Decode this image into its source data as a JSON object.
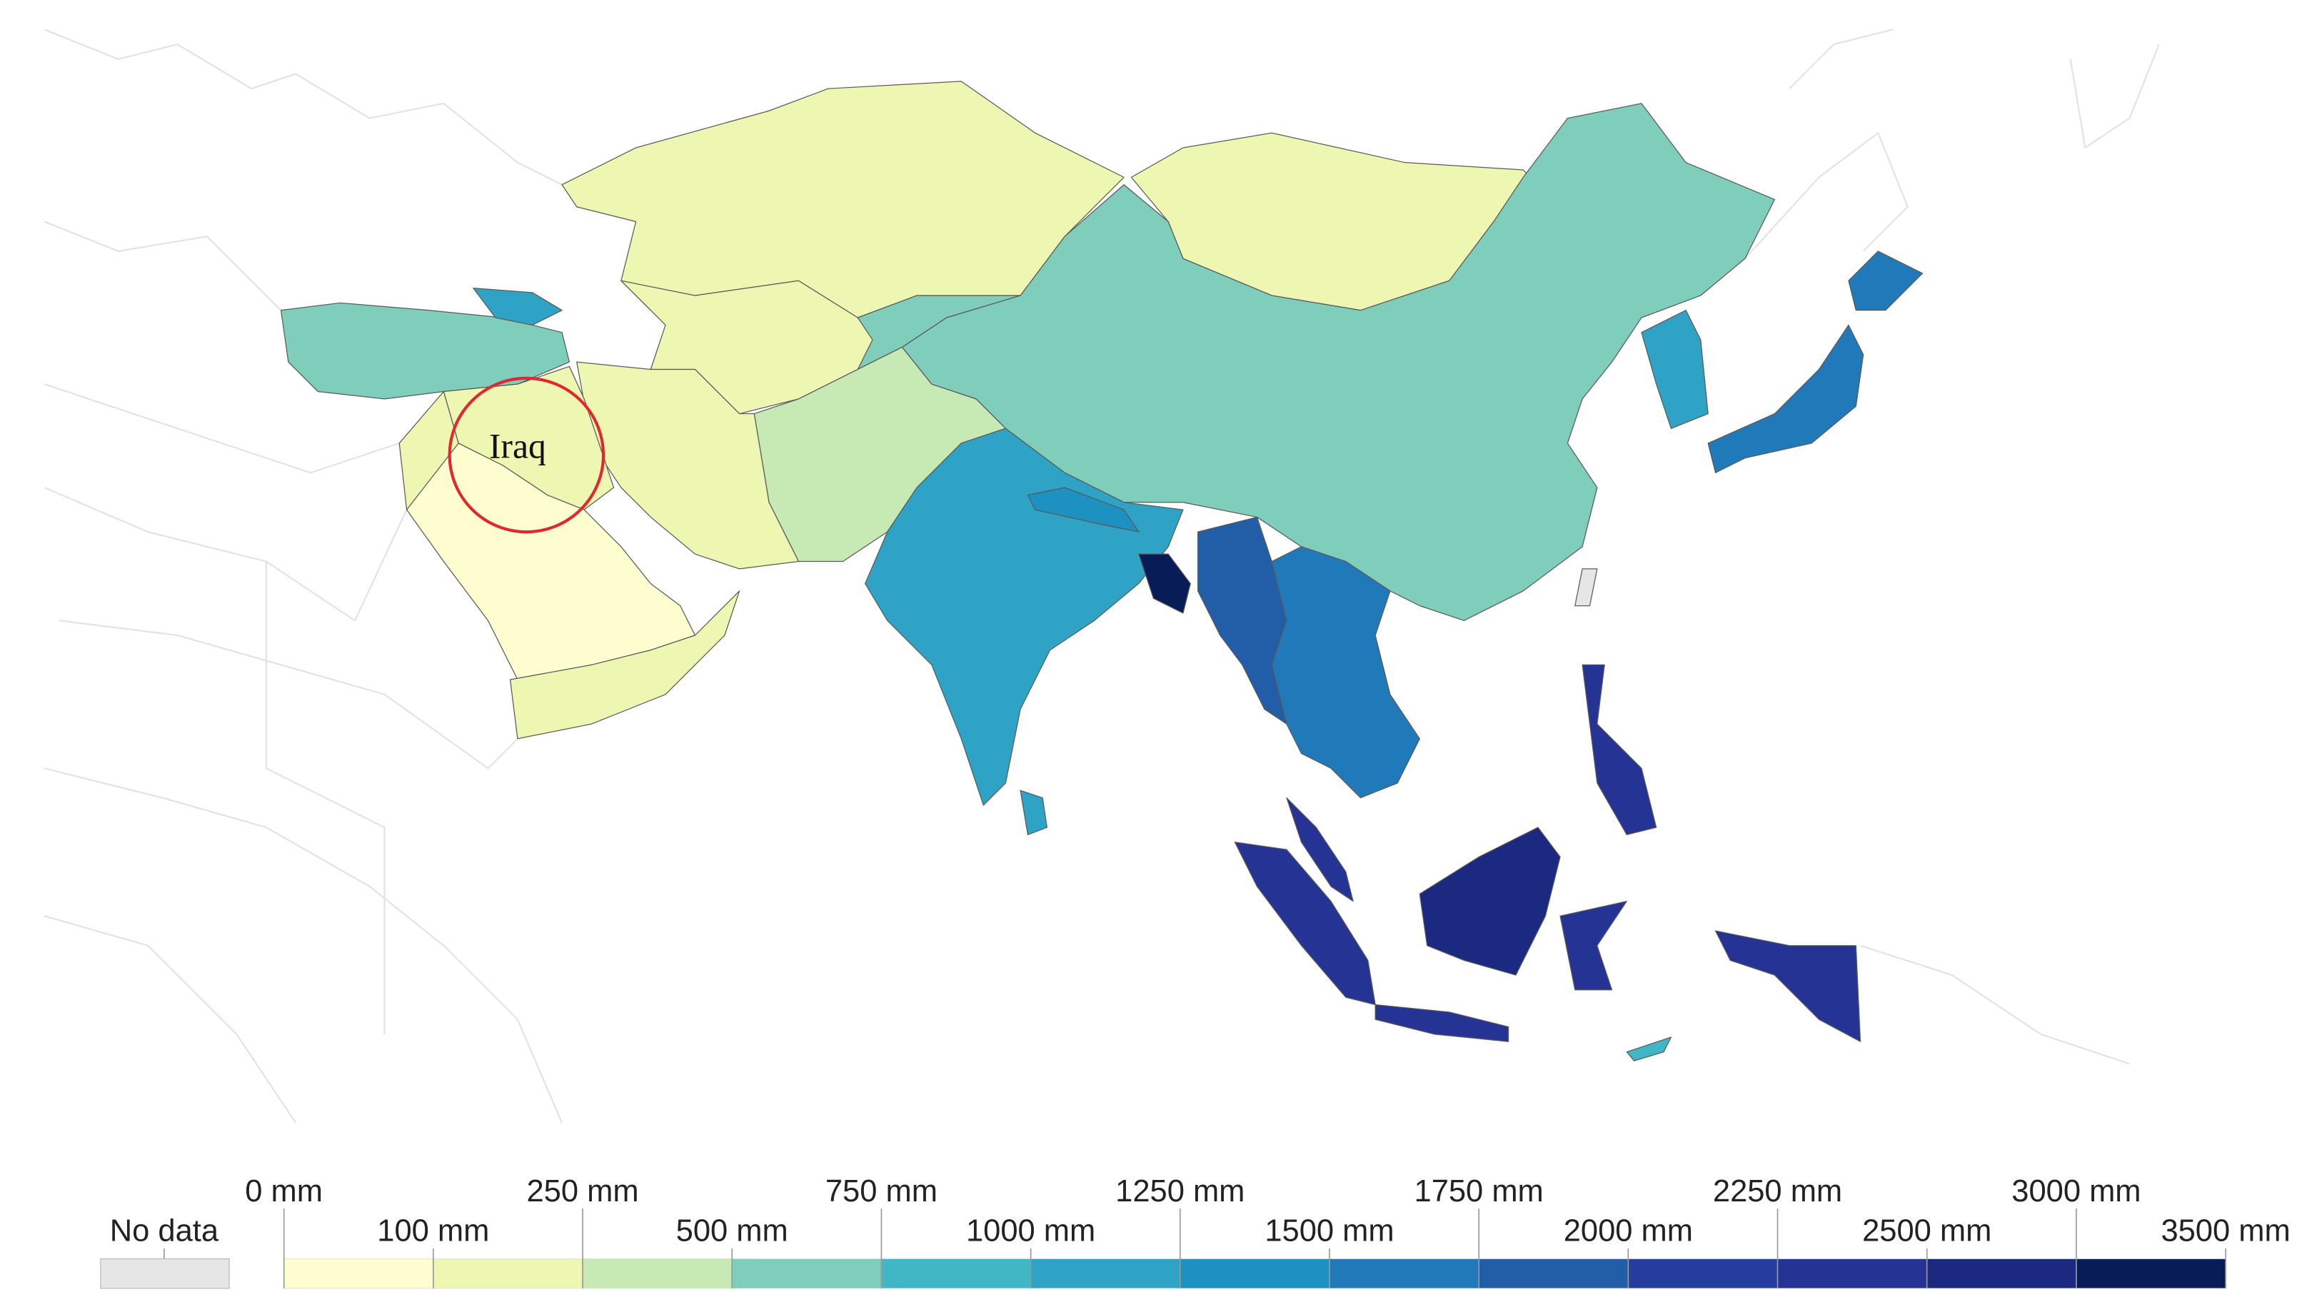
{
  "annotation": {
    "label": "Iraq"
  },
  "legend": {
    "no_data": {
      "label": "No data",
      "color": "#e6e6e6"
    },
    "boundaries": [
      "0 mm",
      "100 mm",
      "250 mm",
      "500 mm",
      "750 mm",
      "1000 mm",
      "1250 mm",
      "1500 mm",
      "1750 mm",
      "2000 mm",
      "2250 mm",
      "2500 mm",
      "3000 mm",
      "3500 mm"
    ],
    "colors": [
      "#fdfdd0",
      "#eef7b2",
      "#c7e9b4",
      "#7fcdbb",
      "#41b6c4",
      "#2fa3c5",
      "#1d91c0",
      "#2079b8",
      "#225ea8",
      "#253e9e",
      "#253494",
      "#1b2a80",
      "#081d58"
    ]
  }
}
